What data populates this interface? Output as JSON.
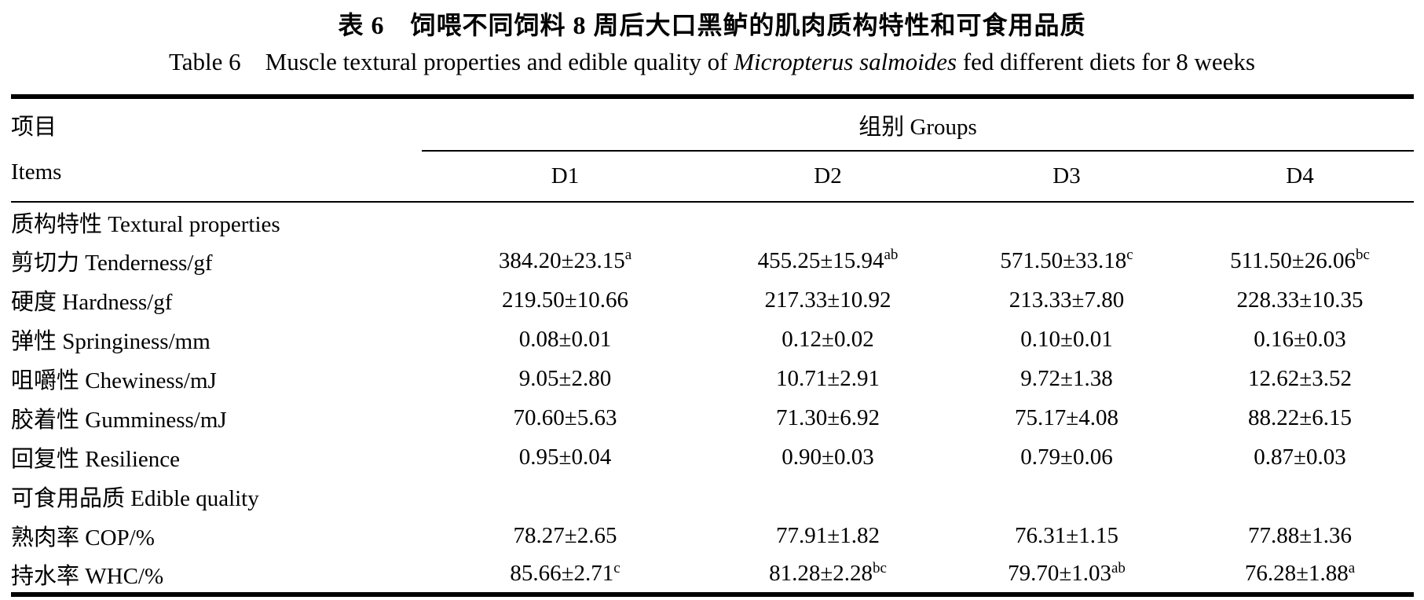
{
  "header": {
    "title_cn": "表 6　饲喂不同饲料 8 周后大口黑鲈的肌肉质构特性和可食用品质",
    "title_en_prefix": "Table 6　Muscle textural properties and edible quality of ",
    "title_en_italic": "Micropterus salmoides",
    "title_en_suffix": " fed different diets for 8 weeks"
  },
  "table": {
    "items_cn": "项目",
    "items_en": "Items",
    "groups": "组别 Groups",
    "columns": [
      "D1",
      "D2",
      "D3",
      "D4"
    ],
    "section1": "质构特性 Textural properties",
    "section2": "可食用品质 Edible quality",
    "rows": [
      {
        "label": "剪切力 Tenderness/gf",
        "c1": "384.20±23.15",
        "c1sup": "a",
        "c2": "455.25±15.94",
        "c2sup": "ab",
        "c3": "571.50±33.18",
        "c3sup": "c",
        "c4": "511.50±26.06",
        "c4sup": "bc"
      },
      {
        "label": "硬度 Hardness/gf",
        "c1": "219.50±10.66",
        "c2": "217.33±10.92",
        "c3": "213.33±7.80",
        "c4": "228.33±10.35"
      },
      {
        "label": "弹性 Springiness/mm",
        "c1": "0.08±0.01",
        "c2": "0.12±0.02",
        "c3": "0.10±0.01",
        "c4": "0.16±0.03"
      },
      {
        "label": "咀嚼性 Chewiness/mJ",
        "c1": "9.05±2.80",
        "c2": "10.71±2.91",
        "c3": "9.72±1.38",
        "c4": "12.62±3.52"
      },
      {
        "label": "胶着性 Gumminess/mJ",
        "c1": "70.60±5.63",
        "c2": "71.30±6.92",
        "c3": "75.17±4.08",
        "c4": "88.22±6.15"
      },
      {
        "label": "回复性 Resilience",
        "c1": "0.95±0.04",
        "c2": "0.90±0.03",
        "c3": "0.79±0.06",
        "c4": "0.87±0.03"
      },
      {
        "label": "熟肉率 COP/%",
        "c1": "78.27±2.65",
        "c2": "77.91±1.82",
        "c3": "76.31±1.15",
        "c4": "77.88±1.36"
      },
      {
        "label": "持水率 WHC/%",
        "c1": "85.66±2.71",
        "c1sup": "c",
        "c2": "81.28±2.28",
        "c2sup": "bc",
        "c3": "79.70±1.03",
        "c3sup": "ab",
        "c4": "76.28±1.88",
        "c4sup": "a"
      }
    ]
  }
}
